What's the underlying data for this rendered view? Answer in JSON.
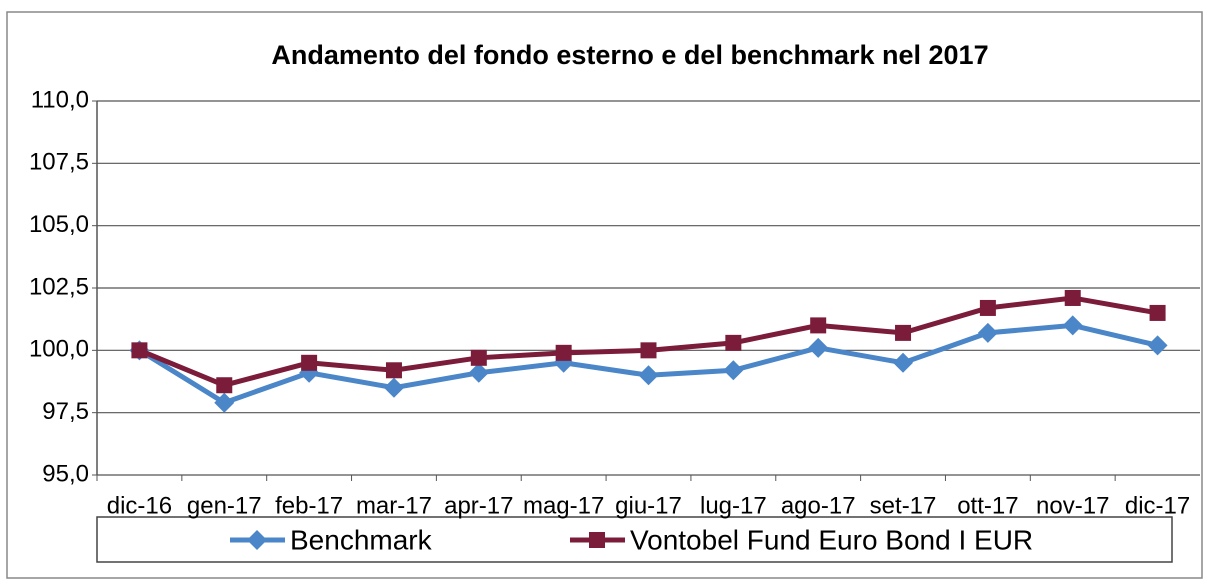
{
  "chart_data": {
    "type": "line",
    "title": "Andamento del fondo esterno e del benchmark nel 2017",
    "categories": [
      "dic-16",
      "gen-17",
      "feb-17",
      "mar-17",
      "apr-17",
      "mag-17",
      "giu-17",
      "lug-17",
      "ago-17",
      "set-17",
      "ott-17",
      "nov-17",
      "dic-17"
    ],
    "series": [
      {
        "name": "Benchmark",
        "color": "#4a86c8",
        "marker": "diamond",
        "values": [
          100.0,
          97.9,
          99.1,
          98.5,
          99.1,
          99.5,
          99.0,
          99.2,
          100.1,
          99.5,
          100.7,
          101.0,
          100.2
        ]
      },
      {
        "name": "Vontobel Fund Euro Bond I EUR",
        "color": "#7b1c3a",
        "marker": "square",
        "values": [
          100.0,
          98.6,
          99.5,
          99.2,
          99.7,
          99.9,
          100.0,
          100.3,
          101.0,
          100.7,
          101.7,
          102.1,
          101.5
        ]
      }
    ],
    "ylim": [
      95,
      110
    ],
    "yticks": [
      {
        "value": 95,
        "label": "95,0"
      },
      {
        "value": 97.5,
        "label": "97,5"
      },
      {
        "value": 100,
        "label": "100,0"
      },
      {
        "value": 102.5,
        "label": "102,5"
      },
      {
        "value": 105,
        "label": "105,0"
      },
      {
        "value": 107.5,
        "label": "107,5"
      },
      {
        "value": 110,
        "label": "110,0"
      }
    ],
    "grid": true,
    "legend": "bottom"
  }
}
